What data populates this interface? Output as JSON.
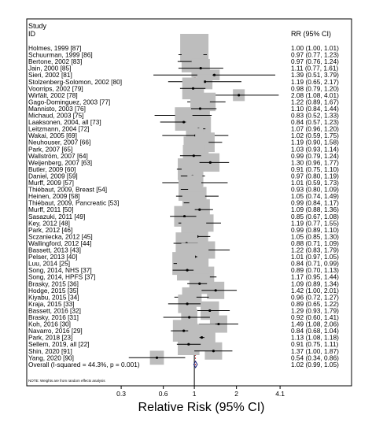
{
  "chart_data": {
    "type": "forest",
    "header_left": [
      "Study",
      "ID"
    ],
    "header_right": "RR (95% CI)",
    "xlabel": "Relative Risk (95% CI)",
    "x_scale": "log",
    "xlim": [
      0.25,
      4.6
    ],
    "x_ticks": [
      {
        "value": 0.3,
        "label": "0.3"
      },
      {
        "value": 0.6,
        "label": "0.6"
      },
      {
        "value": 1,
        "label": "1"
      },
      {
        "value": 2,
        "label": "2"
      },
      {
        "value": 4.1,
        "label": "4.1"
      }
    ],
    "reference_line": 1,
    "overall_line": 1.02,
    "studies": [
      {
        "id": "Holmes, 1999 [87]",
        "rr": 1.0,
        "lo": 1.0,
        "hi": 1.01,
        "ci": "1.00 (1.00, 1.01)",
        "weight": 1.0
      },
      {
        "id": "Schuurman, 1999 [86]",
        "rr": 0.97,
        "lo": 0.77,
        "hi": 1.23,
        "ci": "0.97 (0.77, 1.23)",
        "weight": 0.7
      },
      {
        "id": "Bertone, 2002 [83]",
        "rr": 0.97,
        "lo": 0.76,
        "hi": 1.24,
        "ci": "0.97 (0.76, 1.24)",
        "weight": 0.7
      },
      {
        "id": "Jain, 2000 [85]",
        "rr": 1.11,
        "lo": 0.77,
        "hi": 1.61,
        "ci": "1.11 (0.77, 1.61)",
        "weight": 0.55
      },
      {
        "id": "Sieri, 2002 [81]",
        "rr": 1.39,
        "lo": 0.51,
        "hi": 3.79,
        "ci": "1.39 (0.51, 3.79)",
        "weight": 0.2
      },
      {
        "id": "Stolzenberg-Solomon, 2002 [80]",
        "rr": 1.19,
        "lo": 0.65,
        "hi": 2.17,
        "ci": "1.19 (0.65, 2.17)",
        "weight": 0.4
      },
      {
        "id": "Voorrips, 2002 [79]",
        "rr": 0.98,
        "lo": 0.79,
        "hi": 1.2,
        "ci": "0.98 (0.79, 1.20)",
        "weight": 0.7
      },
      {
        "id": "Wirfält, 2002 [78]",
        "rr": 2.08,
        "lo": 1.08,
        "hi": 4.01,
        "ci": "2.08 (1.08, 4.01)",
        "weight": 0.25
      },
      {
        "id": "Gago-Dominguez, 2003 [77]",
        "rr": 1.22,
        "lo": 0.89,
        "hi": 1.67,
        "ci": "1.22 (0.89, 1.67)",
        "weight": 0.55
      },
      {
        "id": "Mannisto, 2003 [76]",
        "rr": 1.1,
        "lo": 0.84,
        "hi": 1.44,
        "ci": "1.10 (0.84, 1.44)",
        "weight": 0.6
      },
      {
        "id": "Michaud, 2003 [75]",
        "rr": 0.83,
        "lo": 0.52,
        "hi": 1.33,
        "ci": "0.83 (0.52, 1.33)",
        "weight": 0.45
      },
      {
        "id": "Laaksonen, 2004, all [73]",
        "rr": 0.84,
        "lo": 0.57,
        "hi": 1.23,
        "ci": "0.84 (0.57, 1.23)",
        "weight": 0.5
      },
      {
        "id": "Leitzmann, 2004 [72]",
        "rr": 1.07,
        "lo": 0.96,
        "hi": 1.2,
        "ci": "1.07 (0.96, 1.20)",
        "weight": 0.85
      },
      {
        "id": "Wakai, 2005 [69]",
        "rr": 1.02,
        "lo": 0.59,
        "hi": 1.75,
        "ci": "1.02 (0.59, 1.75)",
        "weight": 0.4
      },
      {
        "id": "Neuhouser, 2007 [66]",
        "rr": 1.19,
        "lo": 0.9,
        "hi": 1.58,
        "ci": "1.19 (0.90, 1.58)",
        "weight": 0.6
      },
      {
        "id": "Park, 2007 [65]",
        "rr": 1.03,
        "lo": 0.93,
        "hi": 1.14,
        "ci": "1.03 (0.93, 1.14)",
        "weight": 0.85
      },
      {
        "id": "Wallström, 2007 [64]",
        "rr": 0.99,
        "lo": 0.79,
        "hi": 1.24,
        "ci": "0.99 (0.79, 1.24)",
        "weight": 0.7
      },
      {
        "id": "Weijenberg, 2007 [63]",
        "rr": 1.3,
        "lo": 0.96,
        "hi": 1.77,
        "ci": "1.30 (0.96, 1.77)",
        "weight": 0.55
      },
      {
        "id": "Butler, 2009 [60]",
        "rr": 0.91,
        "lo": 0.75,
        "hi": 1.1,
        "ci": "0.91 (0.75, 1.10)",
        "weight": 0.7
      },
      {
        "id": "Daniel, 2009 [59]",
        "rr": 0.97,
        "lo": 0.8,
        "hi": 1.19,
        "ci": "0.97 (0.80, 1.19)",
        "weight": 0.7
      },
      {
        "id": "Murff, 2009 [57]",
        "rr": 1.01,
        "lo": 0.59,
        "hi": 1.73,
        "ci": "1.01 (0.59, 1.73)",
        "weight": 0.4
      },
      {
        "id": "Thiébaut, 2009, Breast [54]",
        "rr": 0.93,
        "lo": 0.8,
        "hi": 1.09,
        "ci": "0.93 (0.80, 1.09)",
        "weight": 0.75
      },
      {
        "id": "Heinen, 2009 [58]",
        "rr": 1.05,
        "lo": 0.74,
        "hi": 1.49,
        "ci": "1.05 (0.74, 1.49)",
        "weight": 0.55
      },
      {
        "id": "Thiébaut, 2009, Pancreatic [53]",
        "rr": 0.99,
        "lo": 0.84,
        "hi": 1.17,
        "ci": "0.99 (0.84, 1.17)",
        "weight": 0.75
      },
      {
        "id": "Murff, 2011 [50]",
        "rr": 1.09,
        "lo": 0.88,
        "hi": 1.36,
        "ci": "1.09 (0.88, 1.36)",
        "weight": 0.65
      },
      {
        "id": "Sasazuki, 2011 [49]",
        "rr": 0.85,
        "lo": 0.67,
        "hi": 1.08,
        "ci": "0.85 (0.67, 1.08)",
        "weight": 0.65
      },
      {
        "id": "Key, 2012 [48]",
        "rr": 1.19,
        "lo": 0.77,
        "hi": 1.55,
        "ci": "1.19 (0.77, 1.55)",
        "weight": 0.5
      },
      {
        "id": "Park, 2012 [46]",
        "rr": 0.99,
        "lo": 0.89,
        "hi": 1.1,
        "ci": "0.99 (0.89, 1.10)",
        "weight": 0.85
      },
      {
        "id": "Sczaniecka, 2012 [45]",
        "rr": 1.05,
        "lo": 0.85,
        "hi": 1.3,
        "ci": "1.05 (0.85, 1.30)",
        "weight": 0.7
      },
      {
        "id": "Wallingford, 2012 [44]",
        "rr": 0.88,
        "lo": 0.71,
        "hi": 1.09,
        "ci": "0.88 (0.71, 1.09)",
        "weight": 0.7
      },
      {
        "id": "Bassett, 2013 [43]",
        "rr": 1.22,
        "lo": 0.83,
        "hi": 1.79,
        "ci": "1.22 (0.83, 1.79)",
        "weight": 0.5
      },
      {
        "id": "Pelser, 2013 [40]",
        "rr": 1.01,
        "lo": 0.97,
        "hi": 1.05,
        "ci": "1.01 (0.97, 1.05)",
        "weight": 0.95
      },
      {
        "id": "Luu, 2014 [25]",
        "rr": 0.84,
        "lo": 0.71,
        "hi": 0.99,
        "ci": "0.84 (0.71, 0.99)",
        "weight": 0.75
      },
      {
        "id": "Song, 2014, NHS [37]",
        "rr": 0.89,
        "lo": 0.7,
        "hi": 1.13,
        "ci": "0.89 (0.70, 1.13)",
        "weight": 0.65
      },
      {
        "id": "Song, 2014, HPFS [37]",
        "rr": 1.17,
        "lo": 0.95,
        "hi": 1.44,
        "ci": "1.17 (0.95, 1.44)",
        "weight": 0.65
      },
      {
        "id": "Brasky, 2015 [36]",
        "rr": 1.09,
        "lo": 0.89,
        "hi": 1.34,
        "ci": "1.09 (0.89, 1.34)",
        "weight": 0.65
      },
      {
        "id": "Hodge, 2015 [35]",
        "rr": 1.42,
        "lo": 1.0,
        "hi": 2.01,
        "ci": "1.42 (1.00, 2.01)",
        "weight": 0.5
      },
      {
        "id": "Kiyabu, 2015 [34]",
        "rr": 0.96,
        "lo": 0.72,
        "hi": 1.27,
        "ci": "0.96 (0.72, 1.27)",
        "weight": 0.6
      },
      {
        "id": "Kraja, 2015 [33]",
        "rr": 0.89,
        "lo": 0.65,
        "hi": 1.22,
        "ci": "0.89 (0.65, 1.22)",
        "weight": 0.55
      },
      {
        "id": "Bassett, 2016 [32]",
        "rr": 1.29,
        "lo": 0.93,
        "hi": 1.79,
        "ci": "1.29 (0.93, 1.79)",
        "weight": 0.55
      },
      {
        "id": "Brasky, 2016 [31]",
        "rr": 0.92,
        "lo": 0.6,
        "hi": 1.41,
        "ci": "0.92 (0.60, 1.41)",
        "weight": 0.45
      },
      {
        "id": "Koh, 2016 [30]",
        "rr": 1.49,
        "lo": 1.08,
        "hi": 2.06,
        "ci": "1.49 (1.08, 2.06)",
        "weight": 0.5
      },
      {
        "id": "Navarro, 2016 [29]",
        "rr": 0.84,
        "lo": 0.68,
        "hi": 1.04,
        "ci": "0.84 (0.68, 1.04)",
        "weight": 0.7
      },
      {
        "id": "Park, 2018 [23]",
        "rr": 1.13,
        "lo": 1.08,
        "hi": 1.18,
        "ci": "1.13 (1.08, 1.18)",
        "weight": 0.95
      },
      {
        "id": "Sellem, 2019, all [22]",
        "rr": 0.91,
        "lo": 0.75,
        "hi": 1.11,
        "ci": "0.91 (0.75, 1.11)",
        "weight": 0.7
      },
      {
        "id": "Shin, 2020 [91]",
        "rr": 1.37,
        "lo": 1.0,
        "hi": 1.87,
        "ci": "1.37 (1.00, 1.87)",
        "weight": 0.5
      },
      {
        "id": "Yang, 2020 [90]",
        "rr": 0.54,
        "lo": 0.34,
        "hi": 0.86,
        "ci": "0.54 (0.34, 0.86)",
        "weight": 0.35
      }
    ],
    "overall": {
      "label": "Overall  (I-squared = 44.3%, p = 0.001)",
      "rr": 1.02,
      "lo": 0.99,
      "hi": 1.05,
      "ci": "1.02 (0.99, 1.05)"
    },
    "note": "NOTE: Weights are from random effects analysis",
    "colors": {
      "box": "#bdbdbd",
      "line": "#000000",
      "diamond": "#1a237e",
      "overall_line": "#b71c1c",
      "frame": "#000000"
    }
  }
}
